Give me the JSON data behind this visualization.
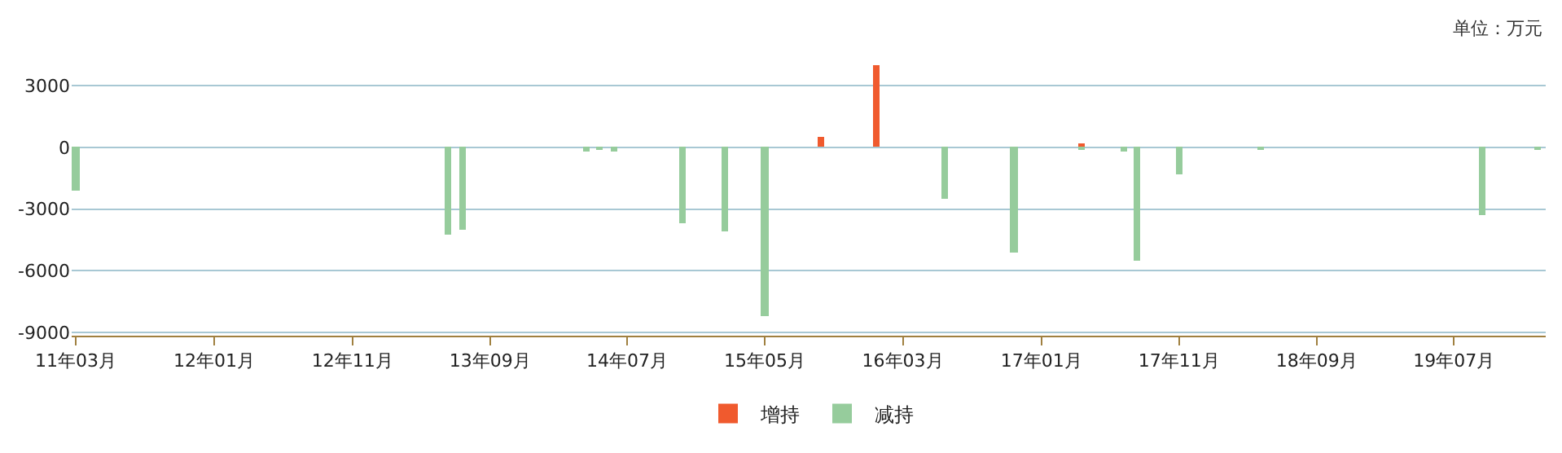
{
  "chart_data": {
    "type": "bar",
    "annotations": [
      "单位：万元"
    ],
    "series": [
      {
        "name": "增持",
        "color": "#f05a2e",
        "x": [
          "2015-09",
          "2016-01",
          "2017-04"
        ],
        "values": [
          500,
          4000,
          200
        ]
      },
      {
        "name": "减持",
        "color": "#96cc9c",
        "x": [
          "2011-03",
          "2013-06",
          "2013-07",
          "2014-04",
          "2014-05",
          "2014-06",
          "2014-11",
          "2015-02",
          "2015-05",
          "2016-06",
          "2016-11",
          "2017-04",
          "2017-07",
          "2017-08",
          "2017-11",
          "2018-05",
          "2019-09",
          "2020-01"
        ],
        "values": [
          -2100,
          -4200,
          -4000,
          -200,
          -100,
          -200,
          -3700,
          -4100,
          -8200,
          -2500,
          -5100,
          -100,
          -200,
          -5500,
          -1300,
          -100,
          -3300,
          -100
        ]
      }
    ],
    "xlim": [
      "2011-02-20",
      "2020-01-20"
    ],
    "xticks": [
      {
        "value": "2011-03",
        "label": "11年03月"
      },
      {
        "value": "2012-01",
        "label": "12年01月"
      },
      {
        "value": "2012-11",
        "label": "12年11月"
      },
      {
        "value": "2013-09",
        "label": "13年09月"
      },
      {
        "value": "2014-07",
        "label": "14年07月"
      },
      {
        "value": "2015-05",
        "label": "15年05月"
      },
      {
        "value": "2016-03",
        "label": "16年03月"
      },
      {
        "value": "2017-01",
        "label": "17年01月"
      },
      {
        "value": "2017-11",
        "label": "17年11月"
      },
      {
        "value": "2018-09",
        "label": "18年09月"
      },
      {
        "value": "2019-07",
        "label": "19年07月"
      }
    ],
    "ylim": [
      -9150,
      4000
    ],
    "yticks": [
      3000,
      0,
      -3000,
      -6000,
      -9000
    ],
    "grid": "y",
    "legend": "bottom"
  }
}
